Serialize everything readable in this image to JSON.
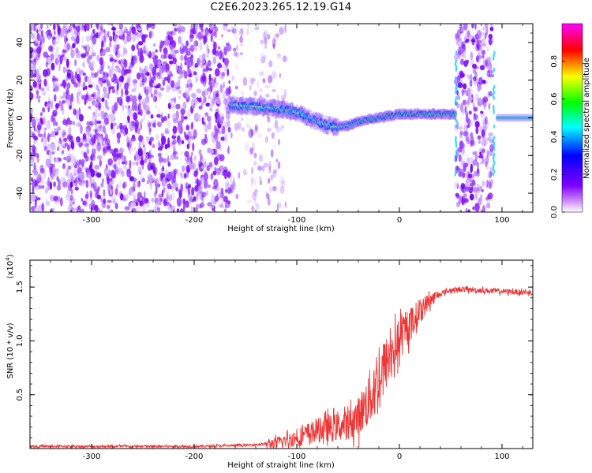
{
  "title": "C2E6.2023.265.12.19.G14",
  "chart_data": [
    {
      "type": "heatmap",
      "xlabel": "Height of straight line (km)",
      "ylabel": "Frequency (Hz)",
      "xlim": [
        -360,
        130
      ],
      "ylim": [
        -50,
        50
      ],
      "xticks": [
        -300,
        -200,
        -100,
        0,
        100
      ],
      "yticks": [
        -40,
        -20,
        0,
        20,
        40
      ],
      "colorbar": {
        "label": "Normalized spectral amplitude",
        "range": [
          0,
          1
        ],
        "ticks": [
          0.0,
          0.2,
          0.4,
          0.6,
          0.8
        ],
        "colormap": [
          "#ffffff",
          "#7f00ff",
          "#0000ff",
          "#00ffff",
          "#00ff00",
          "#ffff00",
          "#ff0000",
          "#ff00ff"
        ]
      },
      "ridge": {
        "x": [
          -165,
          -140,
          -120,
          -100,
          -85,
          -70,
          -60,
          -50,
          -40,
          -30,
          -20,
          -10,
          0,
          20,
          40,
          55
        ],
        "y": [
          7,
          6,
          5,
          3,
          -1,
          -4,
          -5,
          -4,
          -2,
          -1,
          0,
          1,
          2,
          2,
          2,
          2
        ]
      },
      "noise_regions": [
        {
          "xmin": -360,
          "xmax": -165,
          "level": "dense"
        },
        {
          "xmin": -165,
          "xmax": -110,
          "level": "sparse"
        },
        {
          "xmin": 55,
          "xmax": 90,
          "level": "dense"
        }
      ],
      "tone_line": {
        "x": [
          95,
          130
        ],
        "y": 0
      }
    },
    {
      "type": "line",
      "xlabel": "Height of straight line (km)",
      "ylabel": "SNR (10 * v/v)",
      "yscale_label": "(x10",
      "yscale_exp": "4",
      "yscale_close": ")",
      "xlim": [
        -360,
        130
      ],
      "ylim": [
        0,
        1.75
      ],
      "xticks": [
        -300,
        -200,
        -100,
        0,
        100
      ],
      "yticks": [
        0.5,
        1.0,
        1.5
      ],
      "series": [
        {
          "color": "#ee3333",
          "x": [
            -360,
            -300,
            -250,
            -200,
            -150,
            -120,
            -100,
            -80,
            -60,
            -50,
            -40,
            -30,
            -20,
            -10,
            0,
            10,
            20,
            30,
            40,
            50,
            60,
            80,
            100,
            130
          ],
          "y": [
            0.02,
            0.02,
            0.02,
            0.02,
            0.03,
            0.05,
            0.1,
            0.17,
            0.2,
            0.22,
            0.3,
            0.45,
            0.65,
            0.85,
            1.0,
            1.15,
            1.28,
            1.38,
            1.44,
            1.47,
            1.48,
            1.47,
            1.46,
            1.45
          ]
        }
      ]
    }
  ]
}
